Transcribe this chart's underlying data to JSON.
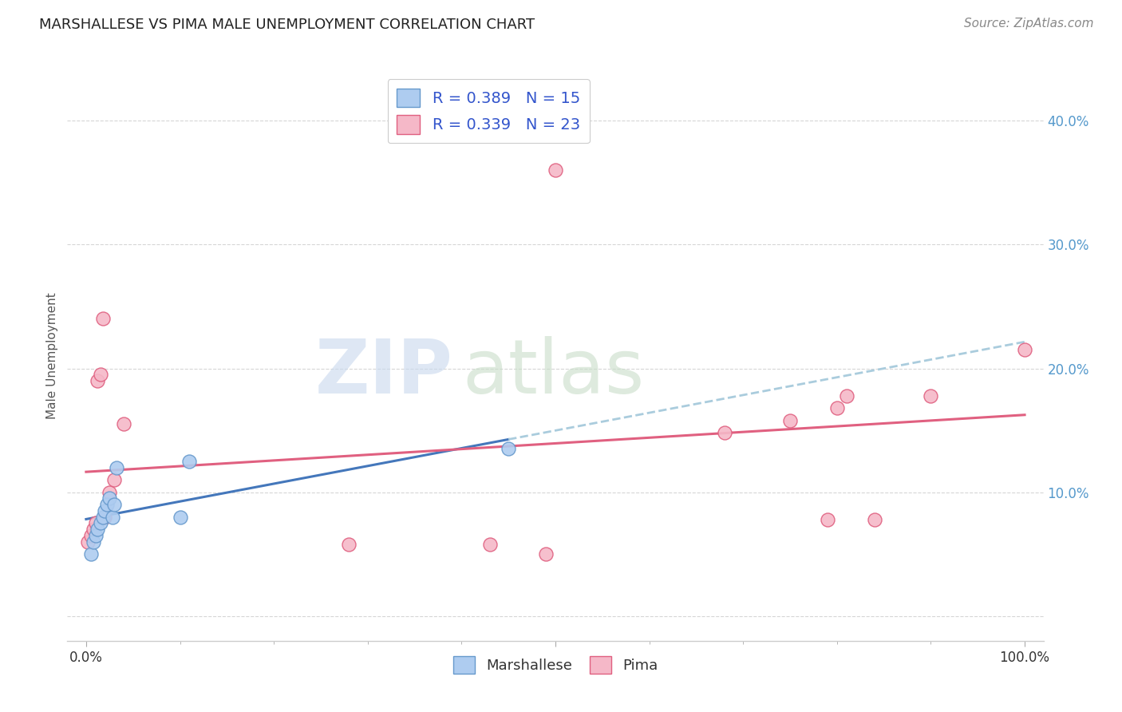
{
  "title": "MARSHALLESE VS PIMA MALE UNEMPLOYMENT CORRELATION CHART",
  "source": "Source: ZipAtlas.com",
  "ylabel": "Male Unemployment",
  "xlim": [
    -0.02,
    1.02
  ],
  "ylim": [
    -0.02,
    0.44
  ],
  "marshallese_color": "#aeccf0",
  "marshallese_edge": "#6699cc",
  "pima_color": "#f5b8c8",
  "pima_edge": "#e06080",
  "trend_blue": "#4477bb",
  "trend_pink": "#e06080",
  "trend_dash": "#aaccdd",
  "legend_text_color": "#3355cc",
  "marshallese_R": "0.389",
  "marshallese_N": "15",
  "pima_R": "0.339",
  "pima_N": "23",
  "marshallese_x": [
    0.005,
    0.008,
    0.01,
    0.012,
    0.015,
    0.018,
    0.02,
    0.022,
    0.025,
    0.028,
    0.03,
    0.032,
    0.1,
    0.11,
    0.45
  ],
  "marshallese_y": [
    0.05,
    0.06,
    0.065,
    0.07,
    0.075,
    0.08,
    0.085,
    0.09,
    0.095,
    0.08,
    0.09,
    0.12,
    0.08,
    0.125,
    0.135
  ],
  "pima_x": [
    0.002,
    0.005,
    0.008,
    0.01,
    0.012,
    0.015,
    0.018,
    0.02,
    0.025,
    0.03,
    0.04,
    0.28,
    0.43,
    0.49,
    0.5,
    0.68,
    0.75,
    0.79,
    0.8,
    0.81,
    0.84,
    0.9,
    1.0
  ],
  "pima_y": [
    0.06,
    0.065,
    0.07,
    0.075,
    0.19,
    0.195,
    0.24,
    0.08,
    0.1,
    0.11,
    0.155,
    0.058,
    0.058,
    0.05,
    0.36,
    0.148,
    0.158,
    0.078,
    0.168,
    0.178,
    0.078,
    0.178,
    0.215
  ],
  "watermark_zip": "ZIP",
  "watermark_atlas": "atlas",
  "background_color": "#ffffff",
  "grid_color": "#cccccc",
  "ytick_color": "#5599cc"
}
